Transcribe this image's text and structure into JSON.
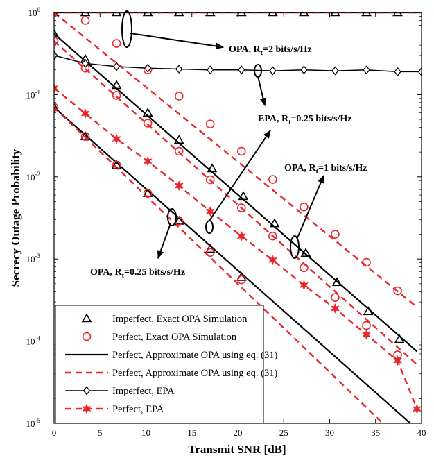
{
  "chart_data": {
    "type": "line",
    "title": "",
    "xlabel": "Transmit SNR [dB]",
    "ylabel": "Secrecy Outage Probability",
    "xlim": [
      0,
      40
    ],
    "ylim": [
      1e-05,
      1
    ],
    "yscale": "log",
    "grid": false,
    "x_ticks": [
      "0",
      "5",
      "10",
      "15",
      "20",
      "25",
      "30",
      "35",
      "40"
    ],
    "y_ticks": [
      {
        "base": "10",
        "exp": "0",
        "value": 1
      },
      {
        "base": "10",
        "exp": "-1",
        "value": 0.1
      },
      {
        "base": "10",
        "exp": "-2",
        "value": 0.01
      },
      {
        "base": "10",
        "exp": "-3",
        "value": 0.001
      },
      {
        "base": "10",
        "exp": "-4",
        "value": 0.0001
      },
      {
        "base": "10",
        "exp": "-5",
        "value": 1e-05
      }
    ],
    "legend_position": "bottom-left",
    "legend": [
      {
        "label": "Imperfect, Exact OPA Simulation",
        "style": "triangle"
      },
      {
        "label": "Perfect, Exact OPA Simulation",
        "style": "circle"
      },
      {
        "label": "Perfect, Approximate OPA using eq. (31)",
        "style": "solid"
      },
      {
        "label": "Perfect, Approximate OPA using eq. (31)",
        "style": "dashed"
      },
      {
        "label": "Imperfect, EPA",
        "style": "solid-diamond"
      },
      {
        "label": "Perfect, EPA",
        "style": "dashed-star"
      }
    ],
    "annotations": [
      {
        "pre": "OPA, R",
        "sub": "t",
        "post": "=2 bits/s/Hz"
      },
      {
        "pre": "EPA, R",
        "sub": "t",
        "post": "=0.25 bits/s/Hz"
      },
      {
        "pre": "OPA, R",
        "sub": "t",
        "post": "=1 bits/s/Hz"
      },
      {
        "pre": "OPA, R",
        "sub": "t",
        "post": "=0.25 bits/s/Hz"
      }
    ],
    "series": [
      {
        "kind": "imperfect_sim_triangle",
        "x": [
          0,
          3.4,
          6.8,
          10.2,
          13.6,
          17,
          20.4,
          23.8,
          27.2,
          30.6,
          34,
          37.4
        ],
        "y": [
          1,
          1,
          1,
          1,
          1,
          1,
          1,
          1,
          1,
          1,
          1,
          1
        ]
      },
      {
        "kind": "imperfect_sim_triangle",
        "x": [
          0,
          3.4,
          6.8,
          10.2,
          13.6,
          17.2,
          20.6,
          24,
          27.4,
          30.8,
          34.2,
          37.6
        ],
        "y": [
          0.55,
          0.27,
          0.13,
          0.06,
          0.028,
          0.0126,
          0.0058,
          0.0027,
          0.00118,
          0.00052,
          0.00023,
          0.000105
        ]
      },
      {
        "kind": "imperfect_sim_triangle",
        "x": [
          0,
          3.4,
          6.8,
          10.2,
          13.6,
          17,
          20.4
        ],
        "y": [
          0.07,
          0.031,
          0.0139,
          0.0063,
          0.0029,
          0.00132,
          0.0006
        ]
      },
      {
        "kind": "perfect_sim_circle",
        "x": [
          0,
          3.4,
          6.8,
          10.2,
          13.6,
          17,
          20.4,
          23.8,
          27.2,
          30.6,
          34,
          37.4
        ],
        "y": [
          1,
          0.8,
          0.42,
          0.2,
          0.096,
          0.044,
          0.0205,
          0.0093,
          0.0043,
          0.002,
          0.00091,
          0.00041
        ]
      },
      {
        "kind": "perfect_sim_circle",
        "x": [
          0,
          3.4,
          6.8,
          10.2,
          13.6,
          17,
          20.4,
          23.8,
          27.2,
          30.6,
          34,
          37.4
        ],
        "y": [
          0.45,
          0.21,
          0.098,
          0.045,
          0.0205,
          0.0092,
          0.0042,
          0.0019,
          0.00078,
          0.00034,
          0.000155,
          6.8e-05
        ]
      },
      {
        "kind": "perfect_sim_circle",
        "x": [
          0,
          3.4,
          6.8,
          10.2,
          13.6,
          17,
          20.4
        ],
        "y": [
          0.07,
          0.031,
          0.0139,
          0.0063,
          0.0029,
          0.0012,
          0.00056
        ]
      },
      {
        "kind": "approx_solid",
        "x": [
          0,
          40
        ],
        "y": [
          1,
          1
        ]
      },
      {
        "kind": "approx_solid",
        "x": [
          0,
          39.5
        ],
        "y": [
          0.55,
          7.5e-05
        ]
      },
      {
        "kind": "approx_solid",
        "x": [
          0,
          39
        ],
        "y": [
          0.07,
          9.5e-06
        ]
      },
      {
        "kind": "approx_dashed",
        "x": [
          0,
          40
        ],
        "y": [
          1,
          1
        ]
      },
      {
        "kind": "approx_dashed",
        "x": [
          0,
          39.5
        ],
        "y": [
          1,
          0.00026
        ]
      },
      {
        "kind": "approx_dashed",
        "x": [
          0,
          39.5
        ],
        "y": [
          0.45,
          5.2e-05
        ]
      },
      {
        "kind": "approx_dashed",
        "x": [
          0,
          36
        ],
        "y": [
          0.07,
          9.5e-06
        ]
      },
      {
        "kind": "epa_imperfect",
        "x": [
          0,
          3.4,
          6.8,
          10.2,
          13.6,
          17,
          20.4,
          23.8,
          27.2,
          30.6,
          34,
          37.4,
          40
        ],
        "y": [
          0.3,
          0.24,
          0.22,
          0.21,
          0.205,
          0.2,
          0.2,
          0.195,
          0.2,
          0.195,
          0.2,
          0.19,
          0.19
        ]
      },
      {
        "kind": "epa_perfect",
        "x": [
          0,
          3.4,
          6.8,
          10.2,
          13.6,
          17,
          20.4,
          23.8,
          27.2,
          30.6,
          34,
          37.4,
          39.5
        ],
        "y": [
          0.12,
          0.059,
          0.029,
          0.0155,
          0.0078,
          0.0038,
          0.0019,
          0.00097,
          0.00048,
          0.00025,
          0.00012,
          5.8e-05,
          1.5e-05
        ]
      }
    ]
  }
}
